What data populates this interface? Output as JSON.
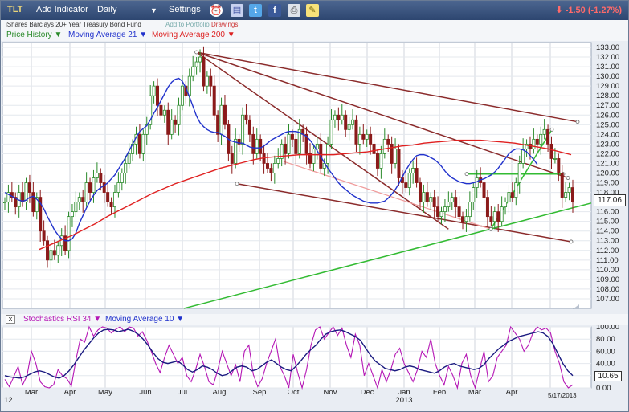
{
  "toolbar": {
    "ticker": "TLT",
    "add_indicator": "Add Indicator",
    "period": "Daily",
    "period_caret": "▼",
    "settings": "Settings",
    "icons": [
      "alarm-clock-icon",
      "report-icon",
      "twitter-icon",
      "facebook-icon",
      "print-icon",
      "note-icon"
    ],
    "change": "-1.50 (-1.27%)",
    "change_arrow": "⬇"
  },
  "subtitle": {
    "fund_name": "iShares Barclays 20+ Year Treasury Bond Fund",
    "add_to_portfolio": "Add to Portfolio",
    "drawings": "Drawings"
  },
  "legend": {
    "price": "Price History ▼",
    "ma21": "Moving Average 21 ▼",
    "ma200": "Moving Average 200 ▼"
  },
  "stoch_legend": {
    "close": "x",
    "stoch": "Stochastics RSI 34 ▼",
    "ma": "Moving Average 10 ▼"
  },
  "colors": {
    "price_up": "#2a8a2a",
    "price_down": "#8b1a1a",
    "ma21": "#2233cc",
    "ma200": "#e02020",
    "trendline": "#8b2b2b",
    "green_line": "#33bb33",
    "stoch": "#b517b5",
    "stoch_ma": "#1a1a80"
  },
  "price_box": "117.06",
  "stoch_box": "10.65",
  "end_date": "5/17/2013",
  "chart_data": [
    {
      "type": "candlestick",
      "ylim": [
        106,
        133.5
      ],
      "y_ticks": [
        "133.00",
        "132.00",
        "131.00",
        "130.00",
        "129.00",
        "128.00",
        "127.00",
        "126.00",
        "125.00",
        "124.00",
        "123.00",
        "122.00",
        "121.00",
        "120.00",
        "119.00",
        "118.00",
        "117.00",
        "116.00",
        "115.00",
        "114.00",
        "113.00",
        "112.00",
        "111.00",
        "110.00",
        "109.00",
        "108.00",
        "107.00"
      ],
      "x_ticks": [
        "12",
        "Mar",
        "Apr",
        "May",
        "Jun",
        "Jul",
        "Aug",
        "Sep",
        "Oct",
        "Nov",
        "Dec",
        "Jan",
        "2013",
        "Feb",
        "Mar",
        "Apr"
      ],
      "series_close": [
        117,
        118,
        117.5,
        116.5,
        118,
        117,
        119,
        118,
        116,
        117.5,
        114,
        113,
        111,
        112,
        111.5,
        112.5,
        113.5,
        112,
        115.5,
        116,
        117,
        117.5,
        117,
        119,
        118,
        119.5,
        120,
        119,
        118,
        117,
        116.5,
        118,
        119,
        120,
        121,
        122,
        123,
        124,
        122,
        124,
        125,
        128,
        129,
        127,
        126,
        126.5,
        124,
        125.5,
        125,
        127,
        129,
        128,
        130,
        131,
        131.5,
        132,
        129,
        130,
        129,
        126,
        124,
        127,
        125,
        122,
        121,
        123.5,
        123,
        126,
        125.5,
        124,
        122,
        123.5,
        122,
        121,
        120.5,
        120,
        121,
        121.5,
        123,
        122,
        124,
        123.5,
        122,
        124.5,
        124,
        122,
        121,
        122.5,
        123,
        120.5,
        121,
        123,
        125.5,
        126,
        125.5,
        126,
        124.5,
        125,
        125.5,
        123,
        124,
        123.5,
        124,
        123,
        122,
        120.5,
        122,
        123.5,
        123,
        121,
        122.5,
        119.5,
        119,
        118.5,
        120,
        120.5,
        119,
        117,
        118,
        117,
        117.5,
        116.5,
        115.5,
        116,
        116.5,
        117,
        117.5,
        116.5,
        115.5,
        115,
        115.5,
        117,
        118.5,
        119.5,
        119,
        117.5,
        115.5,
        115,
        116,
        115,
        116.5,
        117,
        118,
        117.5,
        119,
        121,
        122.5,
        123,
        122.5,
        123.5,
        123,
        124,
        124.5,
        123,
        121.5,
        121.5,
        120,
        117.5,
        118,
        118.5,
        117
      ],
      "series_ma21": [
        118,
        117.8,
        117.6,
        117.4,
        117.2,
        117.1,
        117.2,
        117.5,
        117.6,
        117.3,
        116.9,
        116.3,
        115.5,
        114.8,
        114.1,
        113.6,
        113.2,
        113,
        113,
        113.2,
        113.8,
        114.8,
        115.6,
        116.4,
        117.1,
        117.7,
        118.2,
        118.5,
        118.7,
        119,
        119.4,
        119.8,
        120.4,
        121,
        121.6,
        122.3,
        123,
        123.7,
        124.3,
        124.6,
        124.9,
        125.5,
        126.2,
        126.8,
        127.5,
        128.2,
        128.9,
        129.4,
        129.7,
        129.8,
        129.5,
        128.8,
        127.9,
        126.9,
        125.9,
        125.2,
        124.8,
        124.5,
        124.3,
        124.2,
        124.2,
        124,
        123.8,
        123.5,
        123.3,
        123.2,
        123.1,
        123.1,
        122.9,
        122.7,
        122.6,
        122.6,
        122.6,
        122.8,
        123.1,
        123.4,
        123.6,
        123.8,
        124,
        124.2,
        124.3,
        124.3,
        124.3,
        124.2,
        124,
        123.8,
        123.4,
        122.9,
        122.3,
        121.7,
        121.1,
        120.5,
        120,
        119.5,
        119,
        118.6,
        118.3,
        118,
        117.7,
        117.5,
        117.3,
        117.1,
        117,
        116.9,
        116.9,
        116.9,
        117,
        117.1,
        117.4,
        117.8,
        118.3,
        118.9,
        119.6,
        120.3,
        120.9,
        121.4,
        121.8,
        121.9,
        121.9,
        121.8,
        121.6,
        121.4,
        121.1,
        120.7,
        120.2,
        119.8,
        119.5,
        119.3,
        119.1,
        119,
        118.9,
        118.9,
        119,
        119.1,
        119.3,
        119.4,
        119.6,
        119.8,
        120.1,
        120.5,
        121,
        121.5,
        122,
        122.3,
        122.5,
        122.5,
        122.4,
        122.2,
        121.8,
        121.4,
        120.9
      ],
      "series_ma200": [
        112.1,
        112.6,
        113.1,
        113.6,
        114.2,
        114.8,
        115.5,
        116.1,
        116.7,
        117.3,
        117.9,
        118.4,
        118.9,
        119.3,
        119.7,
        120.1,
        120.5,
        120.8,
        121.1,
        121.4,
        121.6,
        121.7,
        121.8,
        121.9,
        121.9,
        121.9,
        121.9,
        122,
        122.1,
        122.2,
        122.4,
        122.6,
        122.8,
        122.9,
        123.1,
        123.2,
        123.3,
        123.4,
        123.4,
        123.4,
        123.3,
        123.2,
        123.1,
        122.9,
        122.7,
        122.5,
        122.2,
        121.9
      ]
    },
    {
      "type": "line",
      "ylim": [
        0,
        100
      ],
      "y_ticks": [
        "100.00",
        "80.00",
        "60.00",
        "40.00",
        "20.00",
        "0.00"
      ],
      "series": [
        {
          "name": "Stochastics RSI 34",
          "values": [
            14,
            2,
            18,
            35,
            5,
            20,
            60,
            40,
            10,
            2,
            0,
            5,
            30,
            20,
            15,
            3,
            45,
            80,
            75,
            100,
            85,
            95,
            100,
            98,
            90,
            96,
            100,
            92,
            100,
            98,
            85,
            92,
            78,
            60,
            40,
            25,
            50,
            70,
            55,
            40,
            50,
            20,
            10,
            30,
            55,
            35,
            10,
            5,
            30,
            60,
            40,
            20,
            38,
            10,
            60,
            70,
            22,
            2,
            15,
            40,
            60,
            80,
            35,
            20,
            0,
            55,
            25,
            0,
            30,
            70,
            95,
            100,
            80,
            90,
            100,
            86,
            98,
            70,
            50,
            88,
            70,
            20,
            40,
            20,
            0,
            30,
            10,
            30,
            55,
            65,
            40,
            25,
            10,
            30,
            60,
            50,
            80,
            40,
            20,
            5,
            35,
            20,
            0,
            40,
            55,
            20,
            0,
            30,
            60,
            10,
            20,
            50,
            60,
            70,
            100,
            90,
            80,
            60,
            70,
            90,
            100,
            95,
            98,
            90,
            60,
            40,
            10,
            0,
            5
          ]
        },
        {
          "name": "Moving Average 10",
          "values": [
            20,
            18,
            17,
            16,
            18,
            22,
            26,
            28,
            26,
            22,
            18,
            16,
            20,
            28,
            38,
            50,
            62,
            72,
            82,
            90,
            95,
            96,
            95,
            92,
            94,
            96,
            93,
            88,
            80,
            70,
            58,
            48,
            42,
            40,
            42,
            44,
            38,
            30,
            26,
            30,
            36,
            34,
            30,
            24,
            20,
            22,
            28,
            34,
            36,
            34,
            28,
            30,
            36,
            42,
            46,
            40,
            34,
            30,
            28,
            36,
            45,
            55,
            63,
            70,
            80,
            88,
            92,
            94,
            95,
            92,
            88,
            84,
            78,
            66,
            54,
            44,
            38,
            32,
            30,
            28,
            30,
            34,
            36,
            34,
            30,
            28,
            26,
            24,
            28,
            34,
            38,
            40,
            36,
            34,
            32,
            30,
            32,
            38,
            48,
            56,
            64,
            70,
            76,
            80,
            84,
            86,
            88,
            90,
            92,
            90,
            84,
            72,
            56,
            40,
            28,
            20
          ]
        }
      ]
    }
  ]
}
